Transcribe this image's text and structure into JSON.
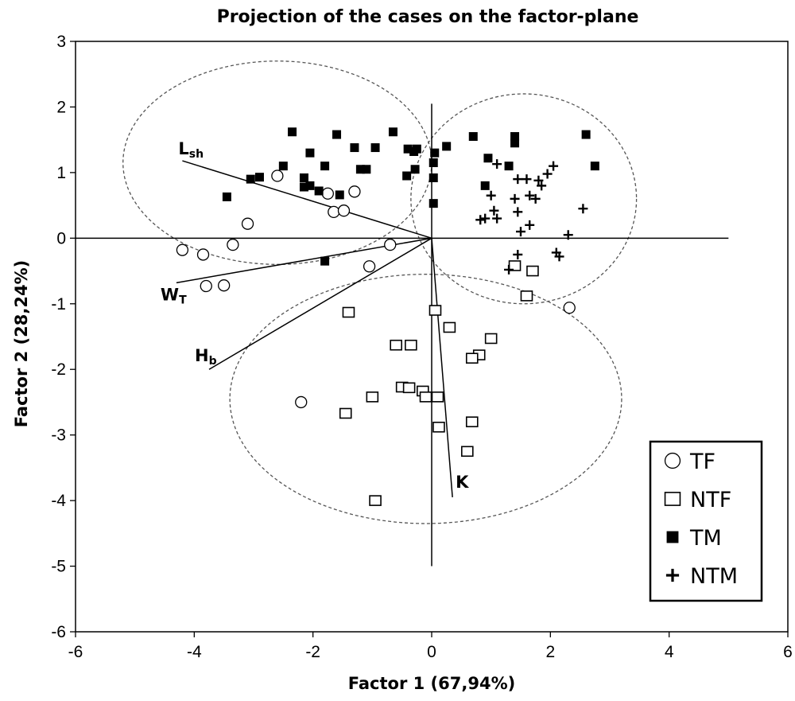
{
  "chart_data": {
    "type": "scatter",
    "title": "Projection of the cases on the factor-plane",
    "xlabel": "Factor 1  (67,94%)",
    "ylabel": "Factor 2 (28,24%)",
    "xlim": [
      -6,
      6
    ],
    "ylim": [
      -6,
      3
    ],
    "xticks": [
      -6,
      -4,
      -2,
      0,
      2,
      4,
      6
    ],
    "yticks": [
      3,
      2,
      1,
      0,
      -1,
      -2,
      -3,
      -4,
      -5,
      -6
    ],
    "grid": false,
    "legend": {
      "position": "bottom-right"
    },
    "series": [
      {
        "name": "TF",
        "marker": "circle-open",
        "points": [
          [
            -2.6,
            0.95
          ],
          [
            -1.75,
            0.68
          ],
          [
            -1.3,
            0.71
          ],
          [
            -1.65,
            0.4
          ],
          [
            -1.48,
            0.42
          ],
          [
            -3.1,
            0.22
          ],
          [
            -4.2,
            -0.18
          ],
          [
            -3.85,
            -0.25
          ],
          [
            -3.35,
            -0.1
          ],
          [
            -3.8,
            -0.73
          ],
          [
            -3.5,
            -0.72
          ],
          [
            -1.05,
            -0.43
          ],
          [
            -0.7,
            -0.1
          ],
          [
            -2.2,
            -2.5
          ],
          [
            2.32,
            -1.06
          ]
        ]
      },
      {
        "name": "NTF",
        "marker": "square-open",
        "points": [
          [
            1.4,
            -0.42
          ],
          [
            1.7,
            -0.5
          ],
          [
            1.6,
            -0.88
          ],
          [
            0.06,
            -1.1
          ],
          [
            -1.4,
            -1.13
          ],
          [
            0.3,
            -1.36
          ],
          [
            1,
            -1.53
          ],
          [
            -0.6,
            -1.63
          ],
          [
            -0.35,
            -1.63
          ],
          [
            0.8,
            -1.78
          ],
          [
            0.68,
            -1.83
          ],
          [
            -0.5,
            -2.27
          ],
          [
            -0.38,
            -2.28
          ],
          [
            -0.15,
            -2.33
          ],
          [
            -1,
            -2.42
          ],
          [
            0.1,
            -2.42
          ],
          [
            -0.1,
            -2.42
          ],
          [
            -1.45,
            -2.67
          ],
          [
            0.68,
            -2.8
          ],
          [
            0.12,
            -2.88
          ],
          [
            0.6,
            -3.25
          ],
          [
            -0.95,
            -4
          ]
        ]
      },
      {
        "name": "TM",
        "marker": "square-filled",
        "points": [
          [
            -2.35,
            1.62
          ],
          [
            -1.6,
            1.58
          ],
          [
            -0.65,
            1.62
          ],
          [
            -1.3,
            1.38
          ],
          [
            -0.95,
            1.38
          ],
          [
            -2.05,
            1.3
          ],
          [
            -2.5,
            1.1
          ],
          [
            -1.8,
            1.1
          ],
          [
            -1.2,
            1.05
          ],
          [
            -1.1,
            1.05
          ],
          [
            -3.05,
            0.9
          ],
          [
            -2.9,
            0.93
          ],
          [
            -2.15,
            0.92
          ],
          [
            -2.05,
            0.8
          ],
          [
            -2.15,
            0.78
          ],
          [
            -1.9,
            0.72
          ],
          [
            -1.55,
            0.66
          ],
          [
            -3.45,
            0.63
          ],
          [
            -0.4,
            1.36
          ],
          [
            -0.25,
            1.36
          ],
          [
            -0.3,
            1.32
          ],
          [
            0.25,
            1.4
          ],
          [
            0.05,
            1.3
          ],
          [
            0.7,
            1.55
          ],
          [
            1.4,
            1.55
          ],
          [
            1.4,
            1.45
          ],
          [
            2.6,
            1.58
          ],
          [
            0.95,
            1.22
          ],
          [
            0.03,
            1.15
          ],
          [
            -0.28,
            1.05
          ],
          [
            0.03,
            0.92
          ],
          [
            1.3,
            1.1
          ],
          [
            2.75,
            1.1
          ],
          [
            -0.42,
            0.95
          ],
          [
            0.03,
            0.53
          ],
          [
            0.9,
            0.8
          ],
          [
            -1.8,
            -0.35
          ]
        ]
      },
      {
        "name": "NTM",
        "marker": "plus",
        "points": [
          [
            1.1,
            1.13
          ],
          [
            1.45,
            0.9
          ],
          [
            1.6,
            0.9
          ],
          [
            1.8,
            0.88
          ],
          [
            2.05,
            1.1
          ],
          [
            1.95,
            0.98
          ],
          [
            1.85,
            0.8
          ],
          [
            1.0,
            0.65
          ],
          [
            1.4,
            0.6
          ],
          [
            1.65,
            0.65
          ],
          [
            1.75,
            0.6
          ],
          [
            1.45,
            0.4
          ],
          [
            1.05,
            0.42
          ],
          [
            0.82,
            0.28
          ],
          [
            0.9,
            0.3
          ],
          [
            1.1,
            0.3
          ],
          [
            1.65,
            0.2
          ],
          [
            1.5,
            0.1
          ],
          [
            2.55,
            0.45
          ],
          [
            2.3,
            0.05
          ],
          [
            2.1,
            -0.22
          ],
          [
            2.15,
            -0.28
          ],
          [
            1.45,
            -0.25
          ],
          [
            1.3,
            -0.48
          ]
        ]
      }
    ],
    "vectors": [
      {
        "label": "L",
        "sub": "sh",
        "end": [
          -4.2,
          1.18
        ]
      },
      {
        "label": "W",
        "sub": "T",
        "end": [
          -4.3,
          -0.68
        ]
      },
      {
        "label": "H",
        "sub": "b",
        "end": [
          -3.75,
          -2.0
        ]
      },
      {
        "label": "K",
        "sub": "",
        "end": [
          0.35,
          -3.95
        ]
      }
    ],
    "ellipses": [
      {
        "center": [
          -2.6,
          1.15
        ],
        "rx": 2.6,
        "ry": 1.55
      },
      {
        "center": [
          1.55,
          0.6
        ],
        "rx": 1.9,
        "ry": 1.6
      },
      {
        "center": [
          -0.1,
          -2.45
        ],
        "rx": 3.3,
        "ry": 1.9
      }
    ]
  }
}
